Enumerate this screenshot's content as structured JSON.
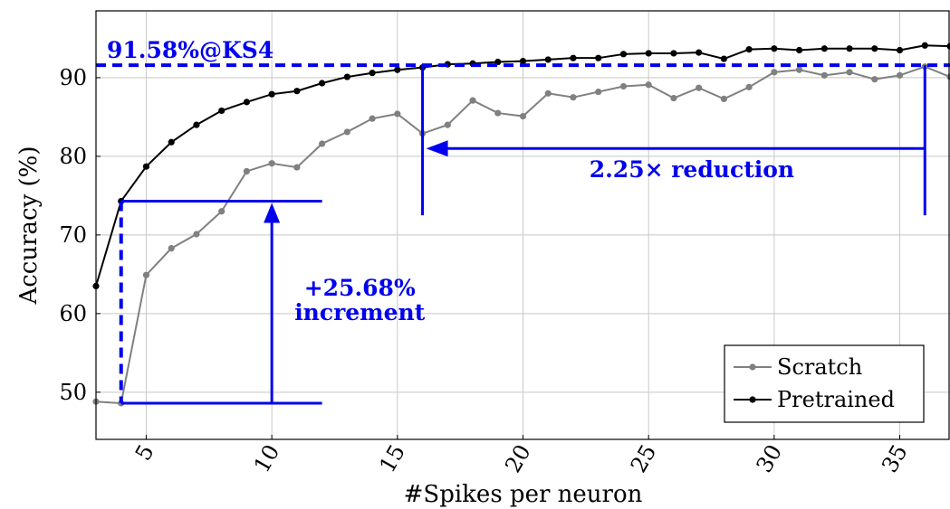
{
  "colors": {
    "scratch": "#808080",
    "pretrained": "#000000",
    "annotation": "#0000ee",
    "grid": "#c8c8c8"
  },
  "chart_data": {
    "type": "line",
    "xlabel": "#Spikes per neuron",
    "ylabel": "Accuracy (%)",
    "xlim": [
      3,
      37
    ],
    "ylim": [
      44,
      98.5
    ],
    "xticks": [
      5,
      10,
      15,
      20,
      25,
      30,
      35
    ],
    "yticks": [
      50,
      60,
      70,
      80,
      90
    ],
    "grid": true,
    "legend_position": "bottom-right",
    "series": [
      {
        "name": "Scratch",
        "x": [
          3,
          4,
          5,
          6,
          7,
          8,
          9,
          10,
          11,
          12,
          13,
          14,
          15,
          16,
          17,
          18,
          19,
          20,
          21,
          22,
          23,
          24,
          25,
          26,
          27,
          28,
          29,
          30,
          31,
          32,
          33,
          34,
          35,
          36,
          37
        ],
        "y": [
          48.8,
          48.6,
          64.9,
          68.3,
          70.1,
          73.0,
          78.1,
          79.1,
          78.6,
          81.6,
          83.1,
          84.8,
          85.4,
          82.9,
          84.0,
          87.1,
          85.5,
          85.1,
          88.0,
          87.5,
          88.2,
          88.9,
          89.1,
          87.4,
          88.7,
          87.3,
          88.8,
          90.7,
          91.0,
          90.3,
          90.7,
          89.8,
          90.3,
          91.4,
          90.1
        ]
      },
      {
        "name": "Pretrained",
        "x": [
          3,
          4,
          5,
          6,
          7,
          8,
          9,
          10,
          11,
          12,
          13,
          14,
          15,
          16,
          17,
          18,
          19,
          20,
          21,
          22,
          23,
          24,
          25,
          26,
          27,
          28,
          29,
          30,
          31,
          32,
          33,
          34,
          35,
          36,
          37
        ],
        "y": [
          63.5,
          74.3,
          78.7,
          81.8,
          84.0,
          85.8,
          86.9,
          87.9,
          88.3,
          89.3,
          90.1,
          90.6,
          91.0,
          91.3,
          91.7,
          91.8,
          92.0,
          92.1,
          92.3,
          92.5,
          92.5,
          93.0,
          93.1,
          93.1,
          93.2,
          92.4,
          93.6,
          93.7,
          93.5,
          93.7,
          93.7,
          93.7,
          93.5,
          94.1,
          94.0
        ]
      }
    ],
    "annotations": {
      "ks4_label": "91.58%@KS4",
      "ks4_level": 91.58,
      "reduction_label": "2.25× reduction",
      "increment_value": "+25.68%",
      "increment_word": "increment"
    }
  }
}
